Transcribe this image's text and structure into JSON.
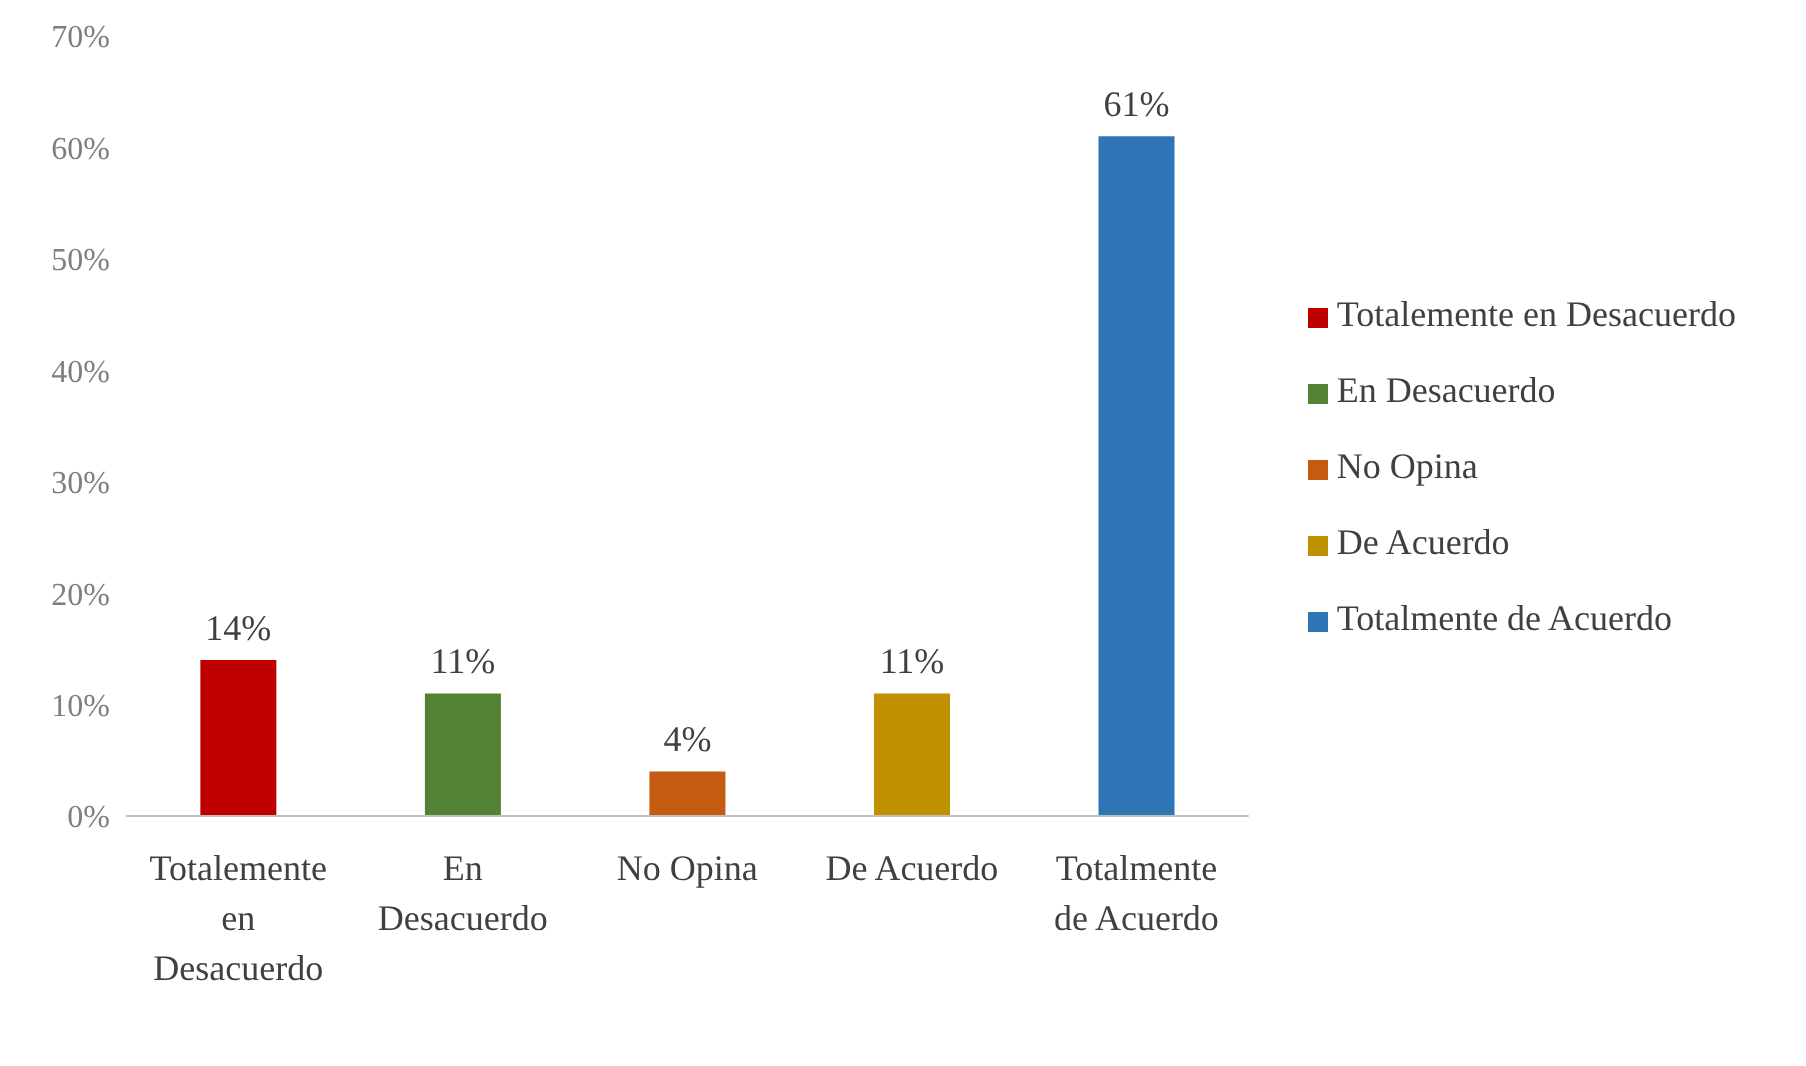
{
  "chart_data": {
    "type": "bar",
    "categories": [
      "Totalemente en Desacuerdo",
      "En Desacuerdo",
      "No Opina",
      "De Acuerdo",
      "Totalmente de Acuerdo"
    ],
    "stacked": true,
    "series": [
      {
        "name": "Totalemente en Desacuerdo",
        "color": "#c00000",
        "values": [
          14,
          null,
          null,
          null,
          null
        ],
        "value_labels": [
          "14%",
          null,
          null,
          null,
          null
        ]
      },
      {
        "name": "En Desacuerdo",
        "color": "#548235",
        "values": [
          null,
          11,
          null,
          null,
          null
        ],
        "value_labels": [
          null,
          "11%",
          null,
          null,
          null
        ]
      },
      {
        "name": "No Opina",
        "color": "#c55a11",
        "values": [
          null,
          null,
          4,
          null,
          null
        ],
        "value_labels": [
          null,
          null,
          "4%",
          null,
          null
        ]
      },
      {
        "name": "De Acuerdo",
        "color": "#bf9000",
        "values": [
          null,
          null,
          null,
          11,
          null
        ],
        "value_labels": [
          null,
          null,
          null,
          "11%",
          null
        ]
      },
      {
        "name": "Totalmente de Acuerdo",
        "color": "#2e75b6",
        "values": [
          null,
          null,
          null,
          null,
          61
        ],
        "value_labels": [
          null,
          null,
          null,
          null,
          "61%"
        ]
      }
    ],
    "ylim": [
      0,
      70
    ],
    "yticks": [
      {
        "value": 0,
        "label": "0%"
      },
      {
        "value": 10,
        "label": "10%"
      },
      {
        "value": 20,
        "label": "20%"
      },
      {
        "value": 30,
        "label": "30%"
      },
      {
        "value": 40,
        "label": "40%"
      },
      {
        "value": 50,
        "label": "50%"
      },
      {
        "value": 60,
        "label": "60%"
      },
      {
        "value": 70,
        "label": "70%"
      }
    ],
    "grid": false,
    "legend": "right"
  }
}
